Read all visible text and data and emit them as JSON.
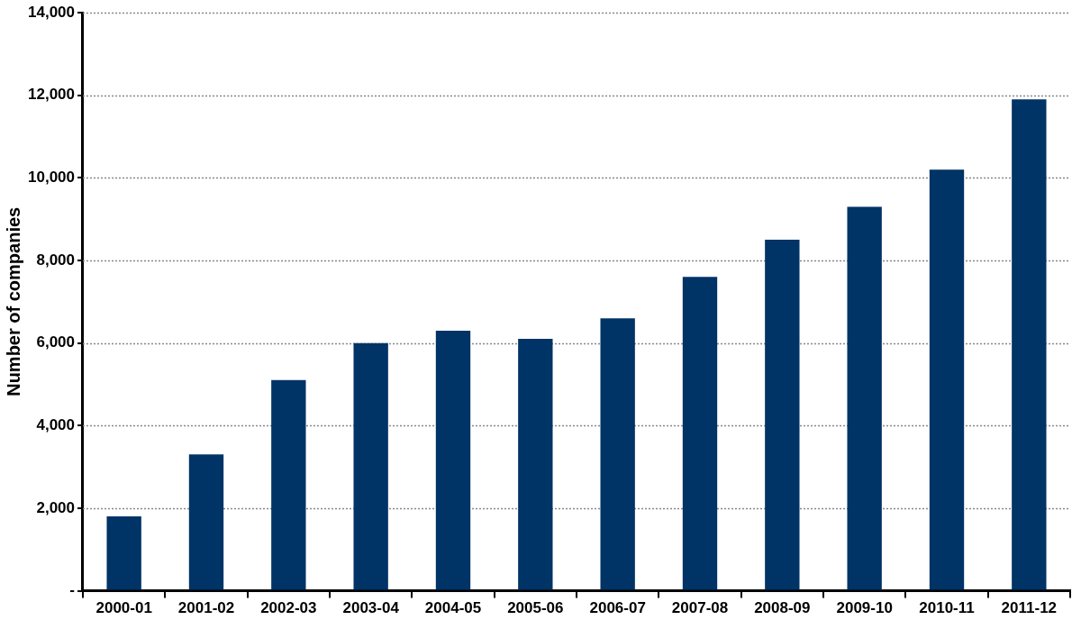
{
  "chart_data": {
    "type": "bar",
    "ylabel": "Number of companies",
    "categories": [
      "2000-01",
      "2001-02",
      "2002-03",
      "2003-04",
      "2004-05",
      "2005-06",
      "2006-07",
      "2007-08",
      "2008-09",
      "2009-10",
      "2010-11",
      "2011-12"
    ],
    "values": [
      1800,
      3300,
      5100,
      6000,
      6300,
      6100,
      6600,
      7600,
      8500,
      9300,
      10200,
      11900
    ],
    "color": "#003366",
    "ylim": [
      0,
      14000
    ],
    "yticks": [
      {
        "value": 0,
        "label": "-"
      },
      {
        "value": 2000,
        "label": "2,000"
      },
      {
        "value": 4000,
        "label": "4,000"
      },
      {
        "value": 6000,
        "label": "6,000"
      },
      {
        "value": 8000,
        "label": "8,000"
      },
      {
        "value": 10000,
        "label": "10,000"
      },
      {
        "value": 12000,
        "label": "12,000"
      },
      {
        "value": 14000,
        "label": "14,000"
      }
    ],
    "grid": "y",
    "legend": false
  }
}
